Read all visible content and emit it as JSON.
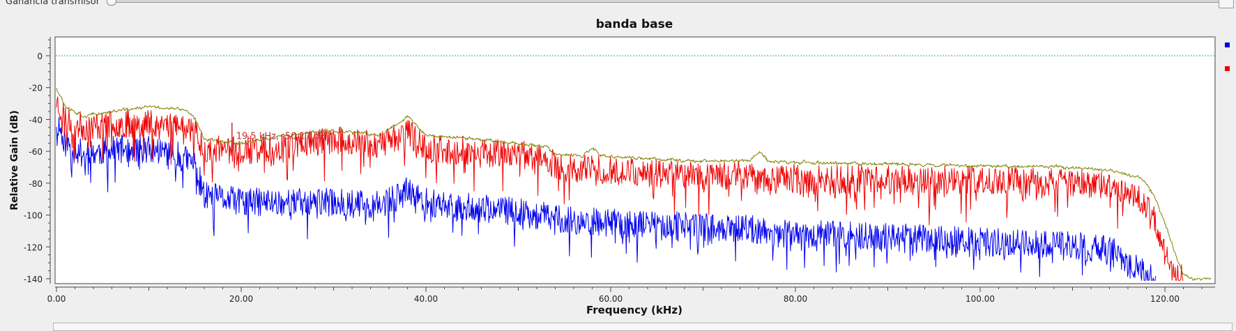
{
  "controls": {
    "gain_label": "Ganancia transmisor"
  },
  "chart_data": {
    "type": "line",
    "title": "banda base",
    "xlabel": "Frequency (kHz)",
    "ylabel": "Relative Gain (dB)",
    "xlim": [
      0,
      125
    ],
    "ylim": [
      -140,
      10
    ],
    "x_ticks": [
      0,
      20,
      40,
      60,
      80,
      100,
      120
    ],
    "x_tick_labels": [
      "0.00",
      "20.00",
      "40.00",
      "60.00",
      "80.00",
      "100.00",
      "120.00"
    ],
    "y_ticks": [
      0,
      -20,
      -40,
      -60,
      -80,
      -100,
      -120,
      -140
    ],
    "y_tick_labels": [
      "0",
      "-20",
      "-40",
      "-60",
      "-80",
      "-100",
      "-120",
      "-140"
    ],
    "reference_line": {
      "y": 0,
      "color": "#2a9d9d"
    },
    "annotation": {
      "x": 19,
      "y": -50.17,
      "text": "19.5 kHz, -50.17 dB",
      "color": "#c03030"
    },
    "legend": {
      "placement": "right",
      "colors": [
        "#0000dd",
        "#ee0000"
      ]
    },
    "series": [
      {
        "color": "#0000ee",
        "profile": [
          [
            0,
            -40
          ],
          [
            1,
            -55
          ],
          [
            3,
            -62
          ],
          [
            5,
            -60
          ],
          [
            8,
            -58
          ],
          [
            12,
            -60
          ],
          [
            15,
            -68
          ],
          [
            16,
            -88
          ],
          [
            20,
            -92
          ],
          [
            25,
            -92
          ],
          [
            30,
            -92
          ],
          [
            35,
            -94
          ],
          [
            38,
            -85
          ],
          [
            40,
            -92
          ],
          [
            45,
            -95
          ],
          [
            50,
            -98
          ],
          [
            55,
            -103
          ],
          [
            60,
            -105
          ],
          [
            65,
            -106
          ],
          [
            70,
            -108
          ],
          [
            75,
            -109
          ],
          [
            80,
            -112
          ],
          [
            85,
            -113
          ],
          [
            90,
            -114
          ],
          [
            95,
            -115
          ],
          [
            100,
            -117
          ],
          [
            105,
            -118
          ],
          [
            110,
            -119
          ],
          [
            114,
            -122
          ],
          [
            116,
            -128
          ],
          [
            118,
            -138
          ],
          [
            119,
            -141
          ]
        ]
      },
      {
        "color": "#ee0000",
        "profile": [
          [
            0,
            -28
          ],
          [
            1,
            -40
          ],
          [
            3,
            -45
          ],
          [
            6,
            -43
          ],
          [
            10,
            -42
          ],
          [
            14,
            -43
          ],
          [
            15,
            -48
          ],
          [
            16,
            -58
          ],
          [
            20,
            -60
          ],
          [
            25,
            -56
          ],
          [
            30,
            -53
          ],
          [
            35,
            -56
          ],
          [
            38,
            -48
          ],
          [
            40,
            -58
          ],
          [
            45,
            -60
          ],
          [
            50,
            -62
          ],
          [
            53,
            -63
          ],
          [
            54,
            -70
          ],
          [
            60,
            -72
          ],
          [
            70,
            -75
          ],
          [
            80,
            -77
          ],
          [
            90,
            -78
          ],
          [
            100,
            -78
          ],
          [
            110,
            -80
          ],
          [
            114,
            -82
          ],
          [
            117,
            -87
          ],
          [
            118,
            -93
          ],
          [
            119,
            -105
          ],
          [
            120,
            -120
          ],
          [
            121,
            -135
          ],
          [
            122,
            -141
          ]
        ]
      },
      {
        "color": "#808000",
        "profile": [
          [
            0,
            -20
          ],
          [
            1,
            -32
          ],
          [
            3,
            -38
          ],
          [
            6,
            -35
          ],
          [
            10,
            -32
          ],
          [
            14,
            -34
          ],
          [
            15,
            -40
          ],
          [
            16,
            -52
          ],
          [
            20,
            -55
          ],
          [
            25,
            -50
          ],
          [
            30,
            -47
          ],
          [
            35,
            -50
          ],
          [
            37,
            -42
          ],
          [
            38,
            -38
          ],
          [
            40,
            -50
          ],
          [
            45,
            -52
          ],
          [
            50,
            -55
          ],
          [
            53,
            -57
          ],
          [
            54,
            -62
          ],
          [
            57,
            -63
          ],
          [
            58,
            -58
          ],
          [
            59,
            -63
          ],
          [
            65,
            -65
          ],
          [
            70,
            -66
          ],
          [
            75,
            -66
          ],
          [
            76,
            -60
          ],
          [
            77,
            -66
          ],
          [
            80,
            -67
          ],
          [
            90,
            -68
          ],
          [
            100,
            -69
          ],
          [
            110,
            -70
          ],
          [
            114,
            -72
          ],
          [
            117,
            -76
          ],
          [
            118,
            -80
          ],
          [
            119,
            -90
          ],
          [
            120,
            -105
          ],
          [
            121,
            -122
          ],
          [
            122,
            -138
          ],
          [
            123,
            -140
          ],
          [
            125,
            -140
          ]
        ]
      }
    ]
  }
}
